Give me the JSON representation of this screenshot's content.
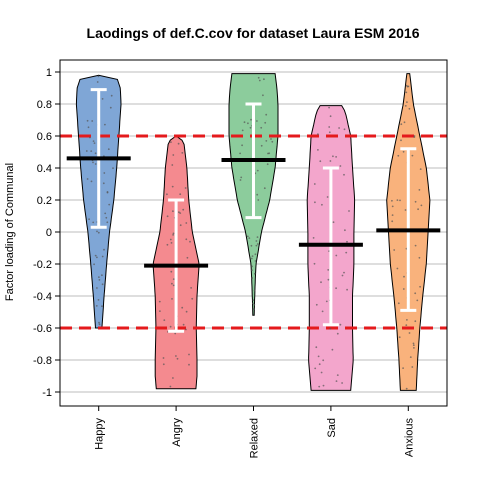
{
  "chart_data": {
    "type": "violin",
    "title": "Laodings of def.C.cov for dataset Laura ESM 2016",
    "xlabel": "",
    "ylabel": "Factor loading of Communal",
    "ylim": [
      -1.05,
      1.1
    ],
    "yticks": [
      1,
      0.8,
      0.6,
      0.4,
      0.2,
      0,
      -0.2,
      -0.4,
      -0.6,
      -0.8,
      -1
    ],
    "grid": true,
    "reference_lines": [
      0.6,
      -0.6
    ],
    "reference_line_color": "#e41a1c",
    "categories": [
      "Happy",
      "Angry",
      "Relaxed",
      "Sad",
      "Anxious"
    ],
    "colors": [
      "#7fa6d6",
      "#f48a8f",
      "#8ccc9c",
      "#f3a6cc",
      "#f9b27c"
    ],
    "series": [
      {
        "name": "Happy",
        "mean": 0.46,
        "error_low": 0.03,
        "error_high": 0.89,
        "min": -0.6,
        "max": 0.98,
        "density": [
          [
            -0.6,
            0.09
          ],
          [
            -0.4,
            0.15
          ],
          [
            -0.2,
            0.22
          ],
          [
            0.0,
            0.3
          ],
          [
            0.2,
            0.42
          ],
          [
            0.4,
            0.5
          ],
          [
            0.6,
            0.56
          ],
          [
            0.8,
            0.62
          ],
          [
            0.9,
            0.6
          ],
          [
            0.98,
            0.48
          ]
        ]
      },
      {
        "name": "Angry",
        "mean": -0.21,
        "error_low": -0.62,
        "error_high": 0.2,
        "min": -0.98,
        "max": 0.6,
        "density": [
          [
            -0.98,
            0.55
          ],
          [
            -0.9,
            0.58
          ],
          [
            -0.8,
            0.58
          ],
          [
            -0.6,
            0.56
          ],
          [
            -0.4,
            0.58
          ],
          [
            -0.2,
            0.64
          ],
          [
            0.0,
            0.45
          ],
          [
            0.2,
            0.35
          ],
          [
            0.4,
            0.3
          ],
          [
            0.55,
            0.22
          ],
          [
            0.6,
            0.1
          ]
        ]
      },
      {
        "name": "Relaxed",
        "mean": 0.45,
        "error_low": 0.09,
        "error_high": 0.8,
        "min": -0.52,
        "max": 0.99,
        "density": [
          [
            -0.52,
            0.02
          ],
          [
            -0.35,
            0.04
          ],
          [
            -0.2,
            0.07
          ],
          [
            0.0,
            0.22
          ],
          [
            0.2,
            0.45
          ],
          [
            0.4,
            0.6
          ],
          [
            0.6,
            0.68
          ],
          [
            0.8,
            0.68
          ],
          [
            0.9,
            0.65
          ],
          [
            0.99,
            0.6
          ]
        ]
      },
      {
        "name": "Sad",
        "mean": -0.08,
        "error_low": -0.58,
        "error_high": 0.4,
        "min": -0.99,
        "max": 0.79,
        "density": [
          [
            -0.99,
            0.55
          ],
          [
            -0.8,
            0.62
          ],
          [
            -0.6,
            0.6
          ],
          [
            -0.4,
            0.6
          ],
          [
            -0.2,
            0.64
          ],
          [
            0.0,
            0.64
          ],
          [
            0.2,
            0.66
          ],
          [
            0.4,
            0.6
          ],
          [
            0.6,
            0.55
          ],
          [
            0.75,
            0.4
          ],
          [
            0.79,
            0.3
          ]
        ]
      },
      {
        "name": "Anxious",
        "mean": 0.01,
        "error_low": -0.49,
        "error_high": 0.52,
        "min": -0.99,
        "max": 0.99,
        "density": [
          [
            -0.99,
            0.22
          ],
          [
            -0.8,
            0.26
          ],
          [
            -0.6,
            0.32
          ],
          [
            -0.4,
            0.4
          ],
          [
            -0.2,
            0.5
          ],
          [
            0.0,
            0.55
          ],
          [
            0.2,
            0.6
          ],
          [
            0.4,
            0.5
          ],
          [
            0.6,
            0.32
          ],
          [
            0.8,
            0.14
          ],
          [
            0.99,
            0.04
          ]
        ]
      }
    ]
  }
}
